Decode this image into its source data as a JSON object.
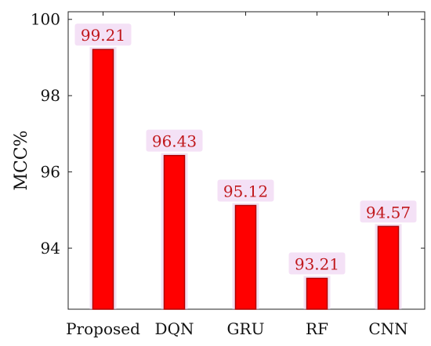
{
  "chart_data": {
    "type": "bar",
    "categories": [
      "Proposed",
      "DQN",
      "GRU",
      "RF",
      "CNN"
    ],
    "values": [
      99.21,
      96.43,
      95.12,
      93.21,
      94.57
    ],
    "data_labels": [
      "99.21",
      "96.43",
      "95.12",
      "93.21",
      "94.57"
    ],
    "title": "",
    "xlabel": "",
    "ylabel": "MCC%",
    "ylim": [
      92.4,
      100.2
    ],
    "yticks": [
      94,
      96,
      98,
      100
    ],
    "grid": false,
    "legend": "none"
  },
  "colors": {
    "bar_fill": "#ff0000",
    "bar_stroke": "#b00000",
    "bar_halo": "#e8c8ea",
    "label_text": "#c0181c",
    "label_halo": "#f2dcf4",
    "axis": "#222222"
  }
}
